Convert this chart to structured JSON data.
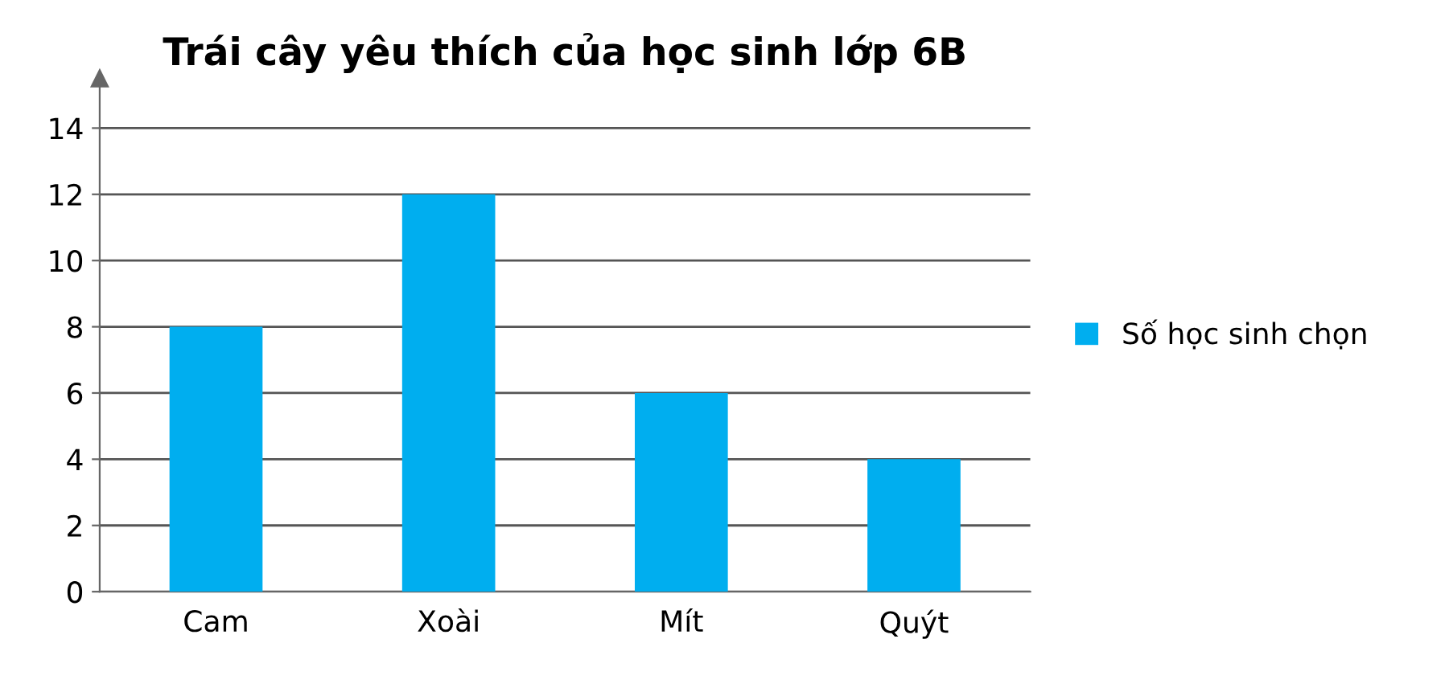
{
  "chart_data": {
    "type": "bar",
    "title": "Trái cây yêu thích của học sinh lớp 6B",
    "categories": [
      "Cam",
      "Xoài",
      "Mít",
      "Quýt"
    ],
    "series": [
      {
        "name": "Số học sinh chọn",
        "color": "#00aeef",
        "values": [
          8,
          12,
          6,
          4
        ]
      }
    ],
    "ylim": [
      0,
      15.5
    ],
    "yticks": [
      0,
      2,
      4,
      6,
      8,
      10,
      12,
      14
    ],
    "grid": "y",
    "legend": "right"
  }
}
